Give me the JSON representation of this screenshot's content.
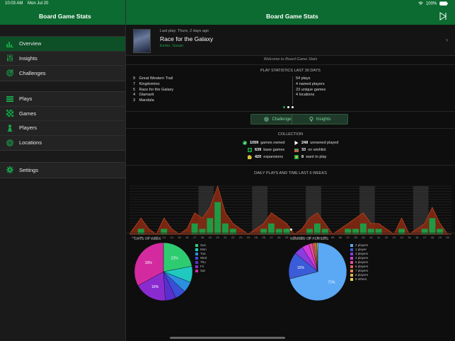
{
  "status": {
    "time": "10:03 AM",
    "date": "Mon Jul 20",
    "battery": "100%"
  },
  "sidebar": {
    "title": "Board Game Stats",
    "group1": [
      {
        "label": "Overview",
        "icon": "bar-chart-icon"
      },
      {
        "label": "Insights",
        "icon": "sliders-icon"
      },
      {
        "label": "Challenges",
        "icon": "target-icon"
      }
    ],
    "group2": [
      {
        "label": "Plays",
        "icon": "list-icon"
      },
      {
        "label": "Games",
        "icon": "checker-icon"
      },
      {
        "label": "Players",
        "icon": "pawn-icon"
      },
      {
        "label": "Locations",
        "icon": "location-target-icon"
      }
    ],
    "group3": [
      {
        "label": "Settings",
        "icon": "gear-icon"
      }
    ]
  },
  "main": {
    "title": "Board Game Stats",
    "last_play": {
      "meta": "Last play: Thurs, 2 days ago",
      "game": "Race for the Galaxy",
      "players": "Eerko, Susan"
    },
    "welcome": "Welcome to Board Game Stats",
    "stats_header": "PLAY STATISTICS LAST 30 DAYS",
    "top_games": [
      {
        "n": "9",
        "name": "Great Western Trail"
      },
      {
        "n": "7",
        "name": "Kingdomino"
      },
      {
        "n": "5",
        "name": "Race for the Galaxy"
      },
      {
        "n": "4",
        "name": "Glamarit"
      },
      {
        "n": "3",
        "name": "Mandala"
      }
    ],
    "totals": [
      {
        "n": "54",
        "name": "plays"
      },
      {
        "n": "4",
        "name": "named players"
      },
      {
        "n": "23",
        "name": "unique games"
      },
      {
        "n": "4",
        "name": "locations"
      }
    ],
    "buttons": {
      "challenges": "Challenges",
      "insights": "Insights"
    },
    "collection_header": "COLLECTION",
    "collection_left": [
      {
        "n": "1059",
        "label": "games owned",
        "color": "#19a64a"
      },
      {
        "n": "639",
        "label": "base games",
        "color": "#19a64a"
      },
      {
        "n": "420",
        "label": "expansions",
        "color": "#d8c43a"
      }
    ],
    "collection_right": [
      {
        "n": "248",
        "label": "unowned played",
        "color": "#ffffff"
      },
      {
        "n": "33",
        "label": "on wishlist",
        "color": "#e05555"
      },
      {
        "n": "8",
        "label": "want to play",
        "color": "#19a64a"
      }
    ],
    "daily_header": "DAILY PLAYS AND TIME LAST 6 WEEKS",
    "dow_title": "DAYS OF WEEK",
    "players_title": "NUMBER OF PLAYERS"
  },
  "chart_data": [
    {
      "type": "bar",
      "title": "DAILY PLAYS AND TIME LAST 6 WEEKS",
      "categories": [
        "09",
        "10",
        "11",
        "12",
        "13",
        "14",
        "15",
        "16",
        "17",
        "18",
        "19",
        "20",
        "21",
        "22",
        "23",
        "24",
        "25",
        "26",
        "27",
        "28",
        "29",
        "30",
        "01",
        "02",
        "03",
        "04",
        "05",
        "06",
        "07",
        "08",
        "09",
        "10",
        "11",
        "12",
        "13",
        "14",
        "15",
        "16",
        "17",
        "18",
        "19",
        "20"
      ],
      "series": [
        {
          "values": [
            0,
            1,
            0,
            0,
            1,
            0,
            0,
            0,
            2,
            1,
            3,
            6,
            2,
            1,
            0,
            0,
            0,
            1,
            2,
            1,
            1,
            0,
            0,
            1,
            2,
            1,
            0,
            0,
            1,
            1,
            2,
            1,
            1,
            0,
            0,
            1,
            0,
            0,
            1,
            3,
            1,
            0
          ]
        },
        {
          "values": [
            1,
            3,
            1,
            0,
            3,
            1,
            0,
            1,
            4,
            3,
            5,
            9,
            4,
            2,
            1,
            0,
            1,
            2,
            4,
            3,
            2,
            0,
            1,
            3,
            4,
            2,
            0,
            1,
            2,
            3,
            4,
            2,
            2,
            1,
            0,
            3,
            0,
            1,
            2,
            5,
            2,
            0
          ]
        }
      ]
    },
    {
      "type": "pie",
      "title": "DAYS OF WEEK",
      "labels": [
        "Sun",
        "Mon",
        "Tue",
        "Wed",
        "Thu",
        "Fri",
        "Sat"
      ],
      "values": [
        22,
        9,
        6,
        6,
        6,
        18,
        33
      ],
      "slice_labels": [
        "22%",
        "",
        "",
        "",
        "",
        "18%",
        "33%"
      ],
      "colors": [
        "#2ecc71",
        "#1fc9c0",
        "#2b8fe0",
        "#3a4fd8",
        "#5a2fd0",
        "#8a2bd0",
        "#d42aa0"
      ]
    },
    {
      "type": "pie",
      "title": "NUMBER OF PLAYERS",
      "labels": [
        "2 players",
        "1 player",
        "3 players",
        "4 players",
        "5 players",
        "6 players",
        "7 players",
        "8 players",
        "9 others"
      ],
      "values": [
        71,
        15,
        5,
        4,
        2,
        1,
        1,
        0.5,
        0.5
      ],
      "slice_labels": [
        "71%",
        "15%",
        "",
        "",
        "",
        "",
        "",
        "",
        ""
      ],
      "colors": [
        "#5ba8f5",
        "#3a5cd8",
        "#8a3ce0",
        "#d23adc",
        "#e84a9a",
        "#e85a5a",
        "#e8884a",
        "#e8b44a",
        "#e8d24a"
      ]
    }
  ]
}
